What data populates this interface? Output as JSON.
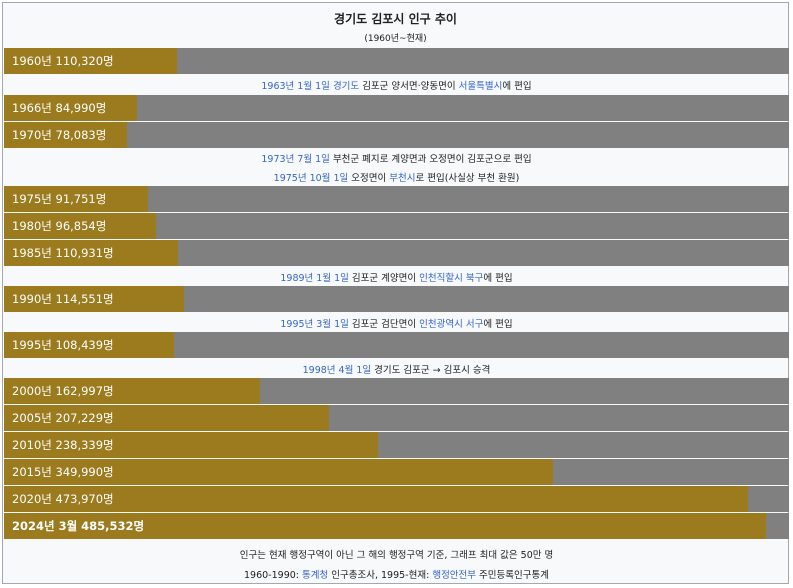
{
  "chart_data": {
    "type": "bar",
    "orientation": "horizontal",
    "title": "경기도 김포시 인구 추이",
    "subtitle": "(1960년~현재)",
    "xlim": [
      0,
      500000
    ],
    "bar_color": "#9b7b1e",
    "track_color": "#808080",
    "categories": [
      "1960년",
      "1966년",
      "1970년",
      "1975년",
      "1980년",
      "1985년",
      "1990년",
      "1995년",
      "2000년",
      "2005년",
      "2010년",
      "2015년",
      "2020년",
      "2024년 3월"
    ],
    "values": [
      110320,
      84990,
      78083,
      91751,
      96854,
      110931,
      114551,
      108439,
      162997,
      207229,
      238339,
      349990,
      473970,
      485532
    ],
    "labels": [
      "1960년 110,320명",
      "1966년 84,990명",
      "1970년 78,083명",
      "1975년 91,751명",
      "1980년 96,854명",
      "1985년 110,931명",
      "1990년 114,551명",
      "1995년 108,439명",
      "2000년 162,997명",
      "2005년 207,229명",
      "2010년 238,339명",
      "2015년 349,990명",
      "2020년 473,970명",
      "2024년 3월 485,532명"
    ],
    "annotations": [
      [
        {
          "t": "1963년 1월 1일",
          "link": true
        },
        {
          "t": " "
        },
        {
          "t": "경기도",
          "link": true
        },
        {
          "t": " 김포군 양서면·양동면이 "
        },
        {
          "t": "서울특별시",
          "link": true
        },
        {
          "t": "에 편입"
        }
      ],
      [
        {
          "t": "1973년 7월 1일",
          "link": true
        },
        {
          "t": " 부천군 폐지로 계양면과 오정면이 김포군으로 편입"
        }
      ],
      [
        {
          "t": "1975년 10월 1일",
          "link": true
        },
        {
          "t": " 오정면이 "
        },
        {
          "t": "부천시",
          "link": true
        },
        {
          "t": "로 편입(사실상 부천 환원)"
        }
      ],
      [
        {
          "t": "1989년 1월 1일",
          "link": true
        },
        {
          "t": " 김포군 계양면이 "
        },
        {
          "t": "인천직할시 북구",
          "link": true
        },
        {
          "t": "에 편입"
        }
      ],
      [
        {
          "t": "1995년 3월 1일",
          "link": true
        },
        {
          "t": " 김포군 검단면이 "
        },
        {
          "t": "인천광역시 서구",
          "link": true
        },
        {
          "t": "에 편입"
        }
      ],
      [
        {
          "t": "1998년 4월 1일",
          "link": true
        },
        {
          "t": " 경기도 김포군 → 김포시 승격"
        }
      ]
    ],
    "footer": [
      [
        {
          "t": "인구는 현재 행정구역이 아닌 그 해의 행정구역 기준, 그래프 최대 값은 50만 명"
        }
      ],
      [
        {
          "t": "1960-1990: "
        },
        {
          "t": "통계청",
          "link": true
        },
        {
          "t": " 인구총조사, 1995-현재: "
        },
        {
          "t": "행정안전부",
          "link": true
        },
        {
          "t": " 주민등록인구통계"
        }
      ]
    ]
  }
}
